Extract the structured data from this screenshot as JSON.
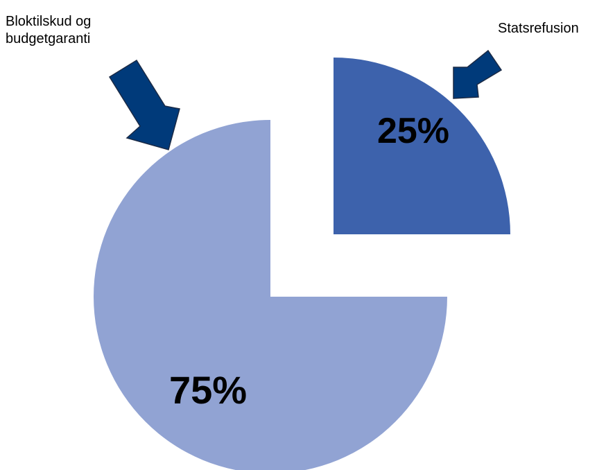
{
  "chart_data": {
    "type": "pie",
    "slices": [
      {
        "label": "Statsrefusion",
        "value": 25,
        "display": "25%",
        "color": "#3d62ac",
        "exploded": true
      },
      {
        "label": "Bloktilskud og budgetgaranti",
        "value": 75,
        "display": "75%",
        "color": "#91a3d3",
        "exploded": false
      }
    ],
    "annotations": {
      "left_lines": [
        "Bloktilskud og",
        "budgetgaranti"
      ],
      "right": "Statsrefusion"
    },
    "arrow_color": "#003a7a"
  }
}
